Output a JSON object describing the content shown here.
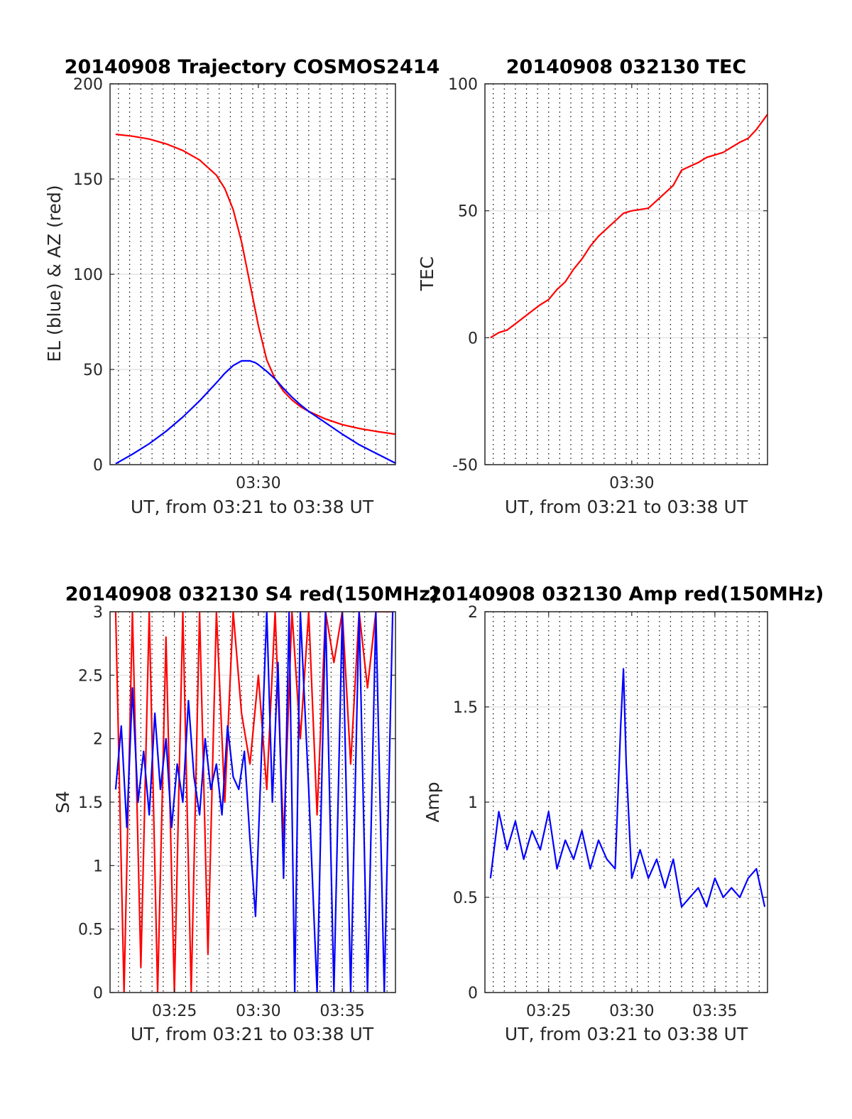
{
  "colors": {
    "red": "#ff0000",
    "blue": "#0000ff",
    "grid_major": "#dddddd",
    "axis": "#262626"
  },
  "chart_data": [
    {
      "id": "trajectory",
      "type": "line",
      "title": "20140908 Trajectory COSMOS2414",
      "xlabel": "UT, from 03:21 to 03:38 UT",
      "ylabel": "EL (blue) & AZ (red)",
      "xlim": [
        "03:21:10",
        "03:38:10"
      ],
      "ylim": [
        0,
        200
      ],
      "yticks": [
        0,
        50,
        100,
        150,
        200
      ],
      "xticks": [
        "03:30"
      ],
      "grid": "dotted vertical every 40 s, horizontal major",
      "series": [
        {
          "color": "#ff0000",
          "x": [
            "03:21:30",
            "03:22:30",
            "03:23:30",
            "03:24:30",
            "03:25:30",
            "03:26:30",
            "03:27:30",
            "03:28:00",
            "03:28:30",
            "03:29:00",
            "03:29:30",
            "03:30:00",
            "03:30:30",
            "03:31:00",
            "03:31:30",
            "03:32:00",
            "03:32:30",
            "03:33:00",
            "03:34:00",
            "03:35:00",
            "03:36:00",
            "03:37:00",
            "03:38:10"
          ],
          "values": [
            173.5,
            172.5,
            171,
            168.5,
            165,
            160,
            152,
            145,
            134,
            117,
            95,
            73,
            55,
            45,
            38.5,
            34,
            30.5,
            28,
            24,
            21,
            19,
            17.5,
            16
          ]
        },
        {
          "color": "#0000ff",
          "x": [
            "03:21:30",
            "03:22:30",
            "03:23:30",
            "03:24:30",
            "03:25:30",
            "03:26:30",
            "03:27:30",
            "03:28:00",
            "03:28:30",
            "03:29:00",
            "03:29:30",
            "03:29:50",
            "03:30:00",
            "03:30:30",
            "03:31:00",
            "03:31:30",
            "03:32:00",
            "03:32:30",
            "03:33:00",
            "03:34:00",
            "03:35:00",
            "03:36:00",
            "03:37:00",
            "03:38:10"
          ],
          "values": [
            0.5,
            5.5,
            11,
            17.5,
            25,
            33.5,
            43,
            48,
            52,
            54.5,
            54.5,
            53.5,
            52.5,
            49,
            45,
            40,
            35.5,
            31.5,
            28,
            22,
            16,
            10.5,
            6,
            0.8
          ]
        }
      ]
    },
    {
      "id": "tec",
      "type": "line",
      "title": "20140908 032130 TEC",
      "xlabel": "UT, from 03:21 to 03:38 UT",
      "ylabel": "TEC",
      "xlim": [
        "03:21:10",
        "03:38:10"
      ],
      "ylim": [
        -50,
        100
      ],
      "yticks": [
        -50,
        0,
        50,
        100
      ],
      "xticks": [
        "03:30"
      ],
      "grid": "dotted vertical every 40 s, horizontal major",
      "series": [
        {
          "color": "#ff0000",
          "x": [
            "03:21:30",
            "03:22:00",
            "03:22:30",
            "03:23:00",
            "03:23:30",
            "03:24:00",
            "03:24:30",
            "03:25:00",
            "03:25:30",
            "03:26:00",
            "03:26:30",
            "03:27:00",
            "03:27:30",
            "03:28:00",
            "03:28:30",
            "03:29:00",
            "03:29:30",
            "03:30:00",
            "03:30:30",
            "03:31:00",
            "03:31:30",
            "03:32:00",
            "03:32:30",
            "03:33:00",
            "03:33:30",
            "03:34:00",
            "03:34:30",
            "03:35:00",
            "03:35:30",
            "03:36:00",
            "03:36:30",
            "03:37:00",
            "03:37:30",
            "03:38:10"
          ],
          "values": [
            0,
            2,
            3,
            5.5,
            8,
            10.5,
            13,
            15,
            19,
            22,
            27,
            31,
            36,
            40,
            43,
            46,
            49,
            50,
            50.5,
            51,
            54,
            57,
            60,
            66,
            67.5,
            69,
            71,
            72,
            73,
            75,
            77,
            78.5,
            82,
            88
          ]
        }
      ]
    },
    {
      "id": "s4",
      "type": "line",
      "title": "20140908 032130 S4 red(150MHz)",
      "xlabel": "UT, from 03:21 to 03:38 UT",
      "ylabel": "S4",
      "xlim": [
        "03:21:10",
        "03:38:10"
      ],
      "ylim": [
        0,
        3
      ],
      "yticks": [
        0,
        0.5,
        1,
        1.5,
        2,
        2.5,
        3
      ],
      "xticks": [
        "03:25",
        "03:30",
        "03:35"
      ],
      "grid": "dotted vertical every 40 s, horizontal major",
      "series": [
        {
          "color": "#ff0000",
          "x": [
            "03:21:30",
            "03:22:00",
            "03:22:30",
            "03:23:00",
            "03:23:30",
            "03:24:00",
            "03:24:30",
            "03:25:00",
            "03:25:30",
            "03:26:00",
            "03:26:30",
            "03:27:00",
            "03:27:30",
            "03:28:00",
            "03:28:30",
            "03:29:00",
            "03:29:30",
            "03:30:00",
            "03:30:30",
            "03:31:00",
            "03:31:30",
            "03:32:00",
            "03:32:30",
            "03:33:00",
            "03:33:30",
            "03:34:00",
            "03:34:30",
            "03:35:00",
            "03:35:30",
            "03:36:00",
            "03:36:30",
            "03:37:00",
            "03:37:30",
            "03:38:00"
          ],
          "values": [
            3,
            0,
            3,
            0.2,
            3,
            0,
            2.8,
            0,
            3,
            0,
            3,
            0.3,
            3,
            1.5,
            3,
            2.2,
            1.8,
            2.5,
            1.6,
            3,
            1.2,
            3,
            2,
            3,
            1.4,
            3,
            2.6,
            3,
            1.8,
            3,
            2.4,
            3,
            3,
            3
          ]
        },
        {
          "color": "#0000ff",
          "x": [
            "03:21:30",
            "03:21:50",
            "03:22:10",
            "03:22:30",
            "03:22:50",
            "03:23:10",
            "03:23:30",
            "03:23:50",
            "03:24:10",
            "03:24:30",
            "03:24:50",
            "03:25:10",
            "03:25:30",
            "03:25:50",
            "03:26:10",
            "03:26:30",
            "03:26:50",
            "03:27:10",
            "03:27:30",
            "03:27:50",
            "03:28:10",
            "03:28:30",
            "03:28:50",
            "03:29:10",
            "03:29:30",
            "03:29:50",
            "03:30:10",
            "03:30:30",
            "03:30:50",
            "03:31:10",
            "03:31:30",
            "03:31:50",
            "03:32:10",
            "03:32:30",
            "03:33:00",
            "03:33:30",
            "03:34:00",
            "03:34:30",
            "03:35:00",
            "03:35:30",
            "03:36:00",
            "03:36:30",
            "03:37:00",
            "03:37:30",
            "03:38:00"
          ],
          "values": [
            1.6,
            2.1,
            1.3,
            2.4,
            1.5,
            1.9,
            1.4,
            2.2,
            1.6,
            2,
            1.3,
            1.8,
            1.5,
            2.3,
            1.7,
            1.4,
            2,
            1.6,
            1.8,
            1.4,
            2.1,
            1.7,
            1.6,
            1.9,
            1.2,
            0.6,
            1.8,
            3,
            1.5,
            2.6,
            0.9,
            3,
            0,
            3,
            1.6,
            0,
            3,
            0,
            3,
            0,
            3,
            0,
            3,
            0,
            3
          ]
        }
      ]
    },
    {
      "id": "amp",
      "type": "line",
      "title": "20140908 032130 Amp red(150MHz)",
      "xlabel": "UT, from 03:21 to 03:38 UT",
      "ylabel": "Amp",
      "xlim": [
        "03:21:10",
        "03:38:10"
      ],
      "ylim": [
        0,
        2
      ],
      "yticks": [
        0,
        0.5,
        1,
        1.5,
        2
      ],
      "xticks": [
        "03:25",
        "03:30",
        "03:35"
      ],
      "grid": "dotted vertical every 40 s, horizontal major",
      "series": [
        {
          "color": "#0000ff",
          "x": [
            "03:21:30",
            "03:22:00",
            "03:22:30",
            "03:23:00",
            "03:23:30",
            "03:24:00",
            "03:24:30",
            "03:25:00",
            "03:25:30",
            "03:26:00",
            "03:26:30",
            "03:27:00",
            "03:27:30",
            "03:28:00",
            "03:28:30",
            "03:29:00",
            "03:29:20",
            "03:29:30",
            "03:29:40",
            "03:30:00",
            "03:30:30",
            "03:31:00",
            "03:31:30",
            "03:32:00",
            "03:32:30",
            "03:33:00",
            "03:33:30",
            "03:34:00",
            "03:34:30",
            "03:35:00",
            "03:35:30",
            "03:36:00",
            "03:36:30",
            "03:37:00",
            "03:37:30",
            "03:38:00"
          ],
          "values": [
            0.6,
            0.95,
            0.75,
            0.9,
            0.7,
            0.85,
            0.75,
            0.95,
            0.65,
            0.8,
            0.7,
            0.85,
            0.65,
            0.8,
            0.7,
            0.65,
            1.4,
            1.7,
            1.2,
            0.6,
            0.75,
            0.6,
            0.7,
            0.55,
            0.7,
            0.45,
            0.5,
            0.55,
            0.45,
            0.6,
            0.5,
            0.55,
            0.5,
            0.6,
            0.65,
            0.45
          ]
        }
      ]
    }
  ]
}
